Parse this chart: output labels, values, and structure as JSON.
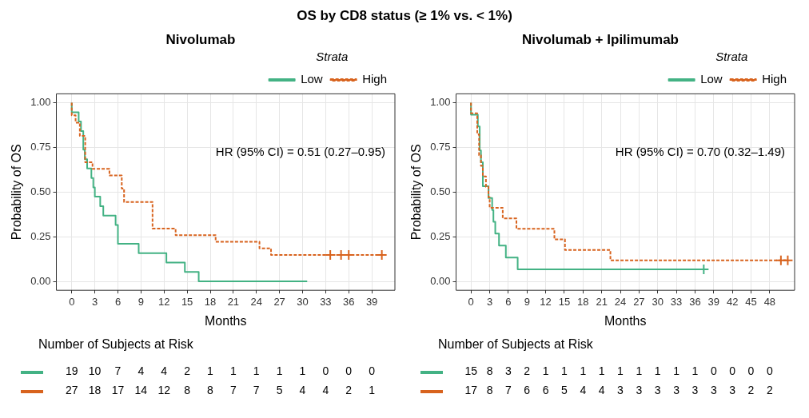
{
  "chart_data": [
    {
      "type": "step",
      "title": "OS by CD8 status (≥ 1% vs. < 1%)",
      "subtitle": "Nivolumab",
      "xlabel": "Months",
      "ylabel": "Probability of OS",
      "legend_title": "Strata",
      "legend": "top right",
      "grid": true,
      "xlim": [
        -2,
        42
      ],
      "xticks": [
        0,
        3,
        6,
        9,
        12,
        15,
        18,
        21,
        24,
        27,
        30,
        33,
        36,
        39
      ],
      "ylim": [
        -0.05,
        1.05
      ],
      "yticks": [
        {
          "value": 0,
          "label": "0.00"
        },
        {
          "value": 0.25,
          "label": "0.25"
        },
        {
          "value": 0.5,
          "label": "0.50"
        },
        {
          "value": 0.75,
          "label": "0.75"
        },
        {
          "value": 1,
          "label": "1.00"
        }
      ],
      "annotations": [
        "HR (95% CI) = 0.51 (0.27–0.95)"
      ],
      "series": [
        {
          "name": "Low",
          "color": "#43b284",
          "line_style": "solid",
          "x": [
            0,
            0.9,
            1.2,
            1.5,
            1.7,
            2.0,
            2.55,
            2.8,
            3.0,
            3.7,
            4.1,
            5.7,
            6.0,
            8.7,
            12.3,
            14.7,
            16.5,
            30.6
          ],
          "values": [
            1,
            0.947,
            0.895,
            0.842,
            0.737,
            0.684,
            0.632,
            0.579,
            0.526,
            0.474,
            0.421,
            0.368,
            0.316,
            0.211,
            0.158,
            0.105,
            0.053,
            0
          ]
        },
        {
          "name": "High",
          "color": "#d8631e",
          "line_style": "dashed",
          "x": [
            0,
            0.5,
            1.05,
            1.75,
            2.7,
            4.9,
            6.5,
            6.8,
            10.5,
            13.5,
            18.7,
            24.4,
            25.9,
            28.8,
            40.3
          ],
          "values": [
            1,
            0.93,
            0.889,
            0.815,
            0.667,
            0.63,
            0.593,
            0.519,
            0.444,
            0.296,
            0.259,
            0.222,
            0.185,
            0.148,
            0.148
          ]
        },
        {
          "type": "scatter",
          "marker": "cross",
          "color": "#d8631e",
          "x": [
            33.6,
            35.0,
            36.0,
            40.3
          ],
          "values": [
            0.148,
            0.148,
            0.148,
            0.148
          ]
        }
      ]
    },
    {
      "type": "step",
      "subtitle": "Nivolumab + Ipilimumab",
      "xlabel": "Months",
      "ylabel": "Probability of OS",
      "legend_title": "Strata",
      "legend": "top right",
      "grid": true,
      "xlim": [
        -2.4,
        52
      ],
      "xticks": [
        0,
        3,
        6,
        9,
        12,
        15,
        18,
        21,
        24,
        27,
        30,
        33,
        36,
        39,
        42,
        45,
        48
      ],
      "ylim": [
        -0.05,
        1.05
      ],
      "yticks": [
        {
          "value": 0,
          "label": "0.00"
        },
        {
          "value": 0.25,
          "label": "0.25"
        },
        {
          "value": 0.5,
          "label": "0.50"
        },
        {
          "value": 0.75,
          "label": "0.75"
        },
        {
          "value": 1,
          "label": "1.00"
        }
      ],
      "annotations": [
        "HR (95% CI) = 0.70 (0.32–1.49)"
      ],
      "series": [
        {
          "name": "Low",
          "color": "#43b284",
          "line_style": "solid",
          "x": [
            0,
            1.1,
            1.4,
            1.6,
            1.9,
            2.8,
            3.4,
            3.6,
            3.9,
            4.5,
            5.6,
            7.5,
            10.9,
            37.4
          ],
          "values": [
            1,
            0.933,
            0.867,
            0.733,
            0.667,
            0.533,
            0.467,
            0.4,
            0.333,
            0.267,
            0.2,
            0.133,
            0.067,
            0.067
          ]
        },
        {
          "name": "High",
          "color": "#d8631e",
          "line_style": "dashed",
          "x": [
            0,
            1.0,
            1.3,
            1.6,
            1.9,
            2.4,
            2.8,
            3.0,
            5.1,
            7.3,
            13.4,
            15.1,
            22.4,
            44.8,
            50.9
          ],
          "values": [
            1,
            0.941,
            0.824,
            0.706,
            0.647,
            0.588,
            0.529,
            0.471,
            0.412,
            0.353,
            0.294,
            0.235,
            0.176,
            0.118,
            0.118
          ]
        },
        {
          "type": "scatter",
          "marker": "cross",
          "color": "#43b284",
          "x": [
            37.4
          ],
          "values": [
            0.067
          ]
        },
        {
          "type": "scatter",
          "marker": "cross",
          "color": "#d8631e",
          "x": [
            49.8,
            50.9
          ],
          "values": [
            0.118,
            0.118
          ]
        }
      ]
    },
    {
      "type": "heatmap",
      "title": "Number of Subjects at Risk",
      "data_labels": true,
      "categories": [
        null,
        null,
        null,
        null,
        null,
        null,
        null,
        null,
        null,
        null,
        null,
        null,
        null,
        null
      ],
      "y_categories": [
        null,
        null
      ],
      "colors": [
        "#43b284",
        "#d8631e"
      ],
      "cells": [
        [
          19,
          10,
          7,
          4,
          4,
          2,
          1,
          1,
          1,
          1,
          1,
          0,
          0,
          0
        ],
        [
          27,
          18,
          17,
          14,
          12,
          8,
          8,
          7,
          7,
          5,
          4,
          4,
          2,
          1
        ]
      ]
    },
    {
      "type": "heatmap",
      "title": "Number of Subjects at Risk",
      "data_labels": true,
      "categories": [
        null,
        null,
        null,
        null,
        null,
        null,
        null,
        null,
        null,
        null,
        null,
        null,
        null,
        null,
        null,
        null,
        null
      ],
      "y_categories": [
        null,
        null
      ],
      "colors": [
        "#43b284",
        "#d8631e"
      ],
      "cells": [
        [
          15,
          8,
          3,
          2,
          1,
          1,
          1,
          1,
          1,
          1,
          1,
          1,
          1,
          0,
          0,
          0,
          0
        ],
        [
          17,
          8,
          7,
          6,
          6,
          5,
          4,
          4,
          3,
          3,
          3,
          3,
          3,
          3,
          3,
          2,
          2
        ]
      ]
    }
  ]
}
